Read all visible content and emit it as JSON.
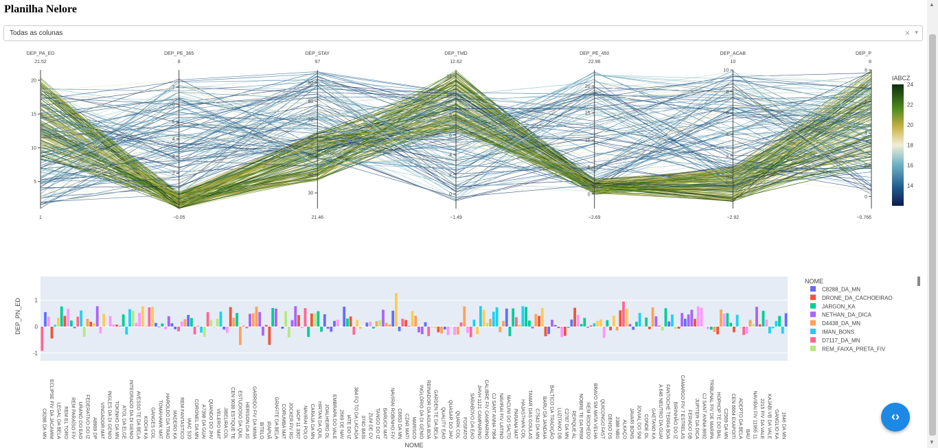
{
  "page": {
    "title": "Planilha Nelore"
  },
  "selector": {
    "value": "Todas as colunas",
    "clear_icon": "×",
    "chevron_icon": "▾"
  },
  "fab": {
    "icon": "code-brackets-icon",
    "label": "‹›"
  },
  "chart_data": [
    {
      "type": "parallel_coordinates",
      "dimensions": [
        {
          "label": "DEP_PA_ED",
          "range": [
            1,
            21.52
          ],
          "ticks": [
            5,
            10,
            15,
            20
          ]
        },
        {
          "label": "DEP_PE_365",
          "range": [
            -0.05,
            8
          ],
          "ticks": [
            2,
            3,
            4,
            5,
            6,
            7
          ]
        },
        {
          "label": "DEP_STAY",
          "range": [
            21.46,
            97
          ],
          "ticks": [
            30,
            40,
            50,
            60,
            70,
            80,
            90
          ]
        },
        {
          "label": "DEP_TMD",
          "range": [
            -1.49,
            12.62
          ],
          "ticks": [
            0,
            2,
            4,
            6,
            8,
            10,
            12
          ]
        },
        {
          "label": "DEP_PE_450",
          "range": [
            -2.69,
            22.96
          ],
          "ticks": [
            0,
            5,
            10,
            15,
            20
          ]
        },
        {
          "label": "DEP_ACAB",
          "range": [
            -2.92,
            10
          ],
          "ticks": [
            0,
            2,
            4,
            6,
            8,
            10
          ]
        },
        {
          "label": "DEP_P",
          "range": [
            -0.766,
            8
          ],
          "ticks": [
            0,
            2,
            4,
            6,
            8
          ]
        }
      ],
      "colorscale": {
        "title": "IABCZ",
        "range": [
          12,
          24
        ],
        "ticks": [
          14,
          16,
          18,
          20,
          22,
          24
        ]
      }
    },
    {
      "type": "bar",
      "xlabel": "NOME",
      "ylabel": "DEP_PN_ED",
      "ylim": [
        -1.3,
        1.9
      ],
      "yticks": [
        -1,
        0,
        1
      ],
      "legend": {
        "title": "NOME",
        "placement": "right",
        "entries": [
          {
            "name": "C8288_DA_MN",
            "color": "#636efa"
          },
          {
            "name": "DRONE_DA_CACHOEIRAO",
            "color": "#ef553b"
          },
          {
            "name": "JARGON_KA",
            "color": "#00cc96"
          },
          {
            "name": "NETHAN_DA_DICA",
            "color": "#ab63fa"
          },
          {
            "name": "D4438_DA_MN",
            "color": "#ffa15a"
          },
          {
            "name": "IMAN_BONS",
            "color": "#19d3f3"
          },
          {
            "name": "D7117_DA_MN",
            "color": "#ff6692"
          },
          {
            "name": "REM_FAIXA_PRETA_FIV",
            "color": "#b6e880"
          }
        ]
      },
      "categories": [
        "C8288_DA_MN",
        "ECLIPSE_FIV_DA_JACAMIM",
        "LEGAL_DA_BELA",
        "REM_EL_TORO",
        "REM_PARAÍSO_FIV",
        "URANO_DO_EAO",
        "FEDERATIVO_DO_IZ",
        "A8909_DP",
        "VINGADOR_MAT",
        "INGLES_DA_DI_GENIO",
        "TOKINHO_DA_MN",
        "ATOL_DA_ELGE",
        "INTEGRADO_DA_DI_GENIO",
        "AVESSO_TE_DA_BELA",
        "KOCHI_KA",
        "GANGES_COL",
        "TOMAHAWK_MAT",
        "HAROLDO_DA_TRAD",
        "MADERO_KA",
        "REM_FANTASTICO",
        "IAAC_S10",
        "CORONEL_DA_MN",
        "A7398_DA_GUAI",
        "QUANDO_DO_JHV",
        "VELERO_MAT",
        "JIBELIRA_COL",
        "CEN_9030_ESTIQUE_TE",
        "ESTUDIOSO_DA_QUIL",
        "HERISON_DA_JG",
        "GARRIDO_FIV_DA_MIMA",
        "BITELO",
        "IRAPUÃ",
        "GRAFITE_DA_BELA",
        "CORUMBA_MAT",
        "JOCKER_FIV_RG",
        "IACP_11_3307",
        "NAVIRAI_POLO",
        "CARAJA_DA_MN",
        "HIRTAN_DA_QUIL",
        "JOALHEIRO_OL",
        "EMBRAPA_DO_VALE",
        "2569_DE_NAV",
        "IATE_DO_IZ",
        "384_FQ_TO_DA_LACADA",
        "374D_BASI",
        "ZUM_DE_CV",
        "TANGO_DO_IZ",
        "BARUCK_MAT",
        "NAVIRAI_ROBINHO_FIV",
        "C6653_DA_MN",
        "CZAR_MATI",
        "MARISCO",
        "INGLÓRIO_DA_DI_GENIO",
        "REINADOR_DA_AGUA_BOA",
        "GARDEN_TE_DA_BELA",
        "QUALITY_EAO",
        "QUASAR_DO_JHV",
        "QUARK_COL",
        "FOSFATO",
        "SARABOVO_DA_EAO",
        "JHVH_1121_CAMPARINO",
        "CALIBRE_FIV_CAMPARINO",
        "CJ_SANT_ANNA_7964",
        "NAVIRAI_FIV_LATINO",
        "MACUNI_DO_SALTO",
        "PARANA_MAT",
        "HAJASTHAN_COL",
        "TAMAR_DAS_GOULAS",
        "C7543_DA_MN",
        "BARU_DA_JANDAIA",
        "BALTICO_DA_TRADIÇÃO",
        "LUZITANO_DB",
        "C2787_DA_MN",
        "REPIQUE_AL",
        "NOBRE_TE_DA_PRIM",
        "REM_ROCHEDO",
        "BRAVO_SM_MATA_VELHA",
        "QUICONGO_FAST",
        "DENSO_DS",
        "2388_NBG",
        "ALKAÇO",
        "JAVARI_BONS",
        "JOVIAL_DO_SNI",
        "CONDE_OL",
        "GAETANO_KA",
        "A_646_NEUTRO_DA_GUAI",
        "FANTOCHE_TERRA_BOA",
        "BIRINHÃO_DO_IZ",
        "CAMARGO_FIV_7_ESTRELAS",
        "FERIADO_DB",
        "JUPITER_DA_DICA",
        "CJ_SANT_ANNA_8692",
        "TRIBUNAL_FIV_DE_MARIPA",
        "HOPHOP_TE_DO_BAL",
        "C2569_DA_MN",
        "CEN_6664_EXAPOITI",
        "ADEPTO_DA_BELA",
        "BAU",
        "NAVIRAI_FIV_11955_11",
        "2215_FIV_DA_VALE",
        "KAJABI_VB_DA_VALE",
        "GANGLIO_KA",
        "1646_DA_MN"
      ]
    }
  ]
}
